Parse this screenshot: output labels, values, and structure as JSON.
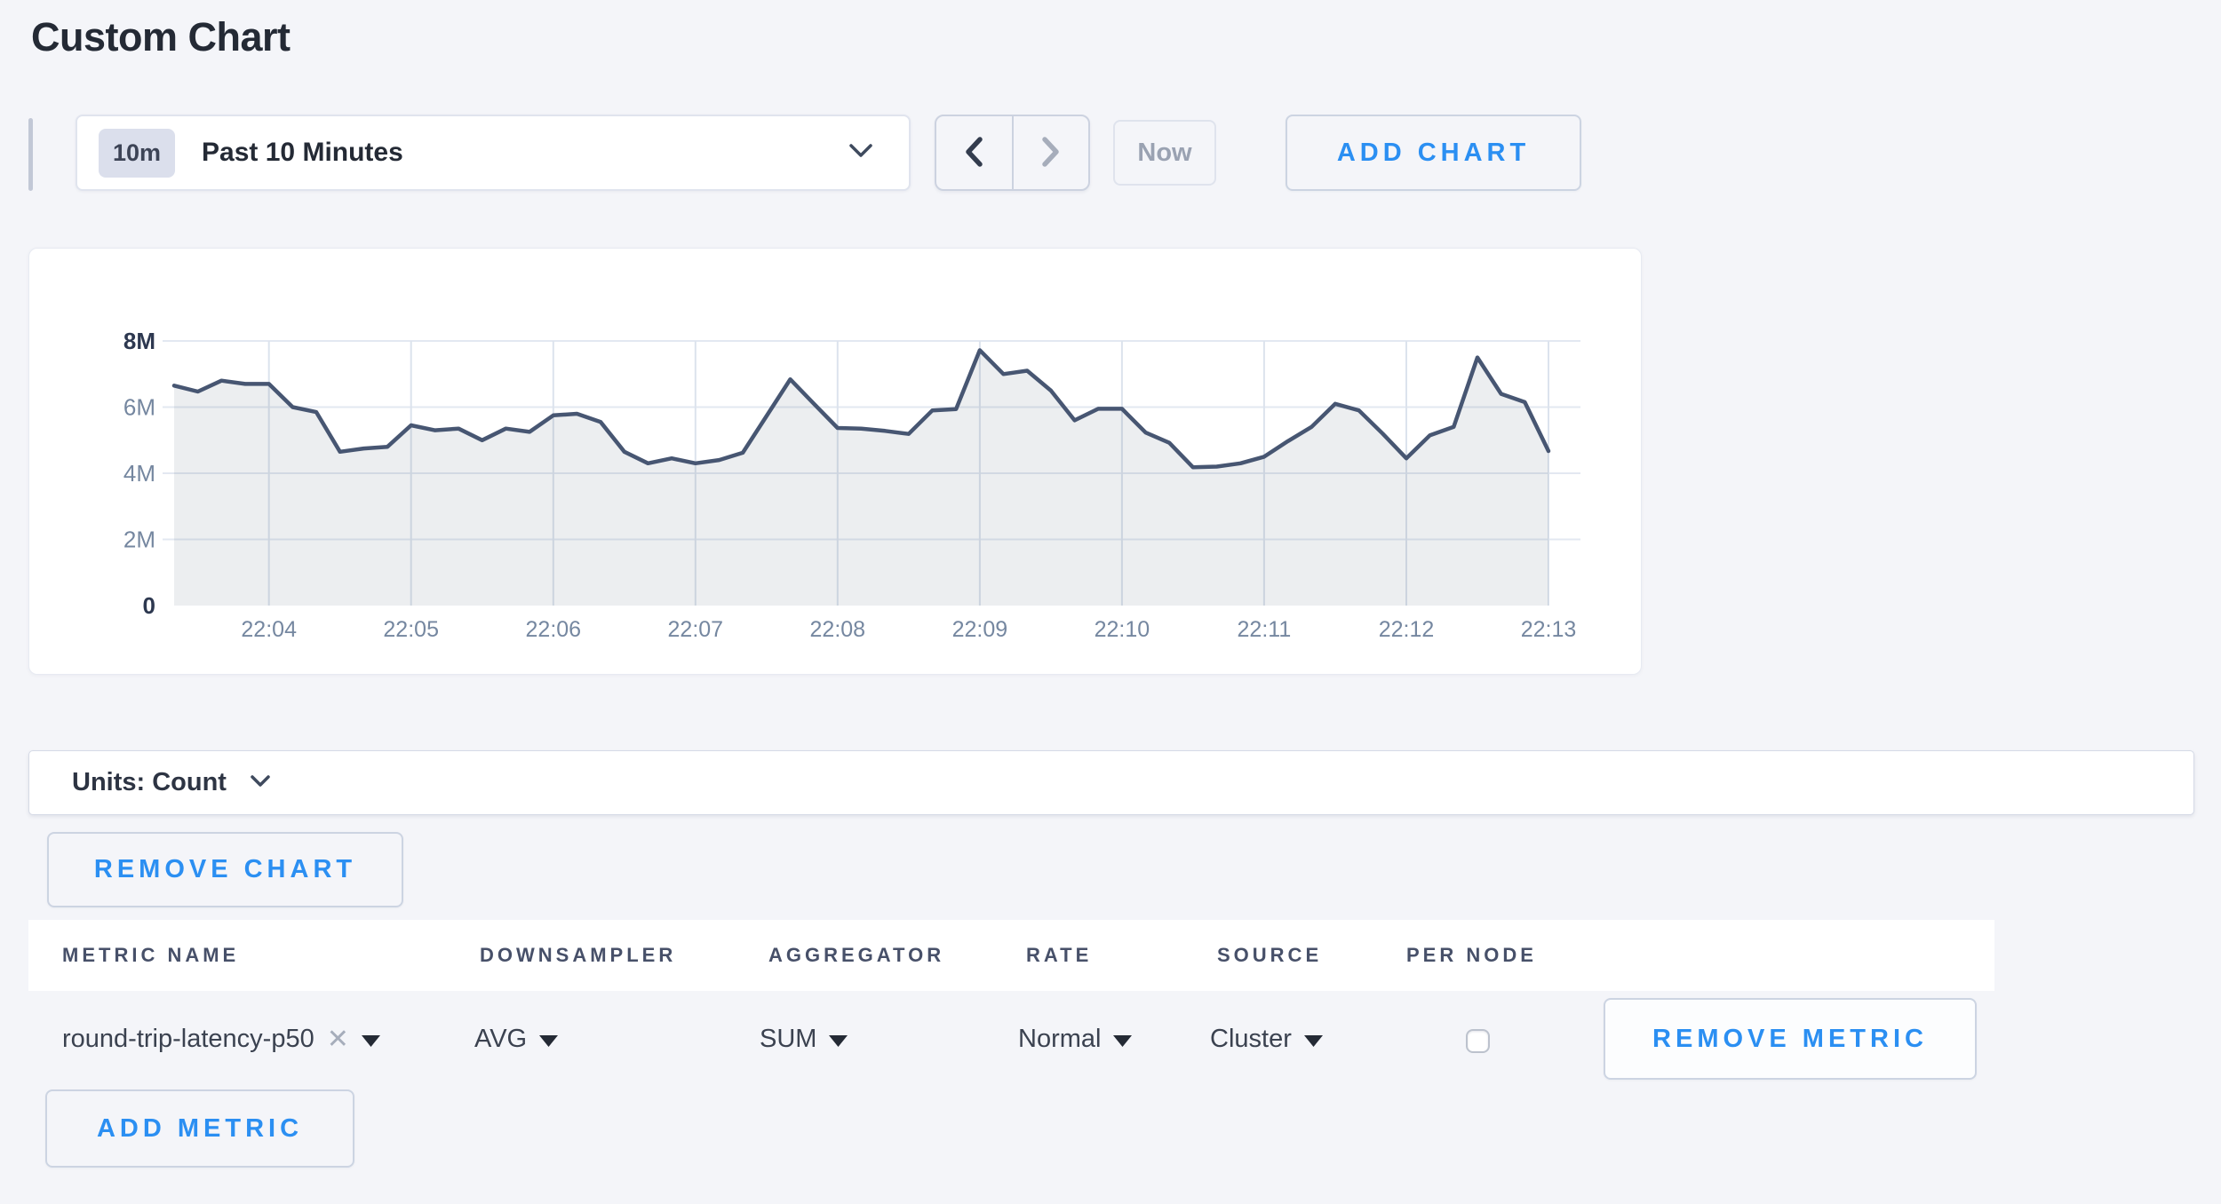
{
  "page": {
    "title": "Custom Chart",
    "background_color": "#f4f5f9",
    "accent_blue": "#2b8ff2"
  },
  "toolbar": {
    "time_range_badge": "10m",
    "time_range_label": "Past 10 Minutes",
    "now_label": "Now",
    "add_chart_label": "ADD CHART"
  },
  "chart_data": {
    "type": "area",
    "title": "",
    "xlabel": "",
    "ylabel": "",
    "x_start_time": "22:03:20",
    "x_interval_seconds": 10,
    "x_ticks": [
      "22:04",
      "22:05",
      "22:06",
      "22:07",
      "22:08",
      "22:09",
      "22:10",
      "22:11",
      "22:12",
      "22:13"
    ],
    "x_tick_start_index": 4,
    "x_tick_step": 6,
    "values_millions": [
      6.65,
      6.47,
      6.8,
      6.7,
      6.7,
      6.0,
      5.85,
      4.65,
      4.75,
      4.8,
      5.45,
      5.3,
      5.35,
      5.0,
      5.35,
      5.25,
      5.75,
      5.8,
      5.55,
      4.65,
      4.3,
      4.45,
      4.3,
      4.4,
      4.62,
      5.73,
      6.84,
      6.1,
      5.37,
      5.35,
      5.28,
      5.19,
      5.9,
      5.94,
      7.72,
      7.0,
      7.1,
      6.5,
      5.6,
      5.95,
      5.95,
      5.23,
      4.92,
      4.18,
      4.2,
      4.3,
      4.5,
      4.97,
      5.4,
      6.1,
      5.9,
      5.2,
      4.45,
      5.15,
      5.4,
      7.5,
      6.4,
      6.15,
      4.67
    ],
    "y_max_millions": 8,
    "ylim": [
      0,
      8000000
    ],
    "y_ticks": [
      {
        "label": "8M",
        "value_millions": 8,
        "emphasis": true
      },
      {
        "label": "6M",
        "value_millions": 6,
        "emphasis": false
      },
      {
        "label": "4M",
        "value_millions": 4,
        "emphasis": false
      },
      {
        "label": "2M",
        "value_millions": 2,
        "emphasis": false
      },
      {
        "label": "0",
        "value_millions": 0,
        "emphasis": true
      }
    ],
    "grid": true,
    "legend": "none",
    "line_color": "#475672",
    "fill_color": "rgba(71,85,110,0.10)",
    "grid_color_h": "#e3e8f1",
    "grid_color_v": "#dce3ed",
    "axis_strong_color": "#2d3850",
    "axis_muted_color": "#7587a0"
  },
  "units_bar": {
    "label": "Units: Count"
  },
  "chart_actions": {
    "remove_chart_label": "REMOVE CHART"
  },
  "metrics_table": {
    "columns": [
      "METRIC NAME",
      "DOWNSAMPLER",
      "AGGREGATOR",
      "RATE",
      "SOURCE",
      "PER NODE"
    ],
    "rows": [
      {
        "metric_name": "round-trip-latency-p50",
        "remove_tag_glyph": "✕",
        "downsampler": "AVG",
        "aggregator": "SUM",
        "rate": "Normal",
        "source": "Cluster",
        "per_node_checked": false,
        "remove_metric_label": "REMOVE METRIC"
      }
    ],
    "add_metric_label": "ADD METRIC"
  }
}
